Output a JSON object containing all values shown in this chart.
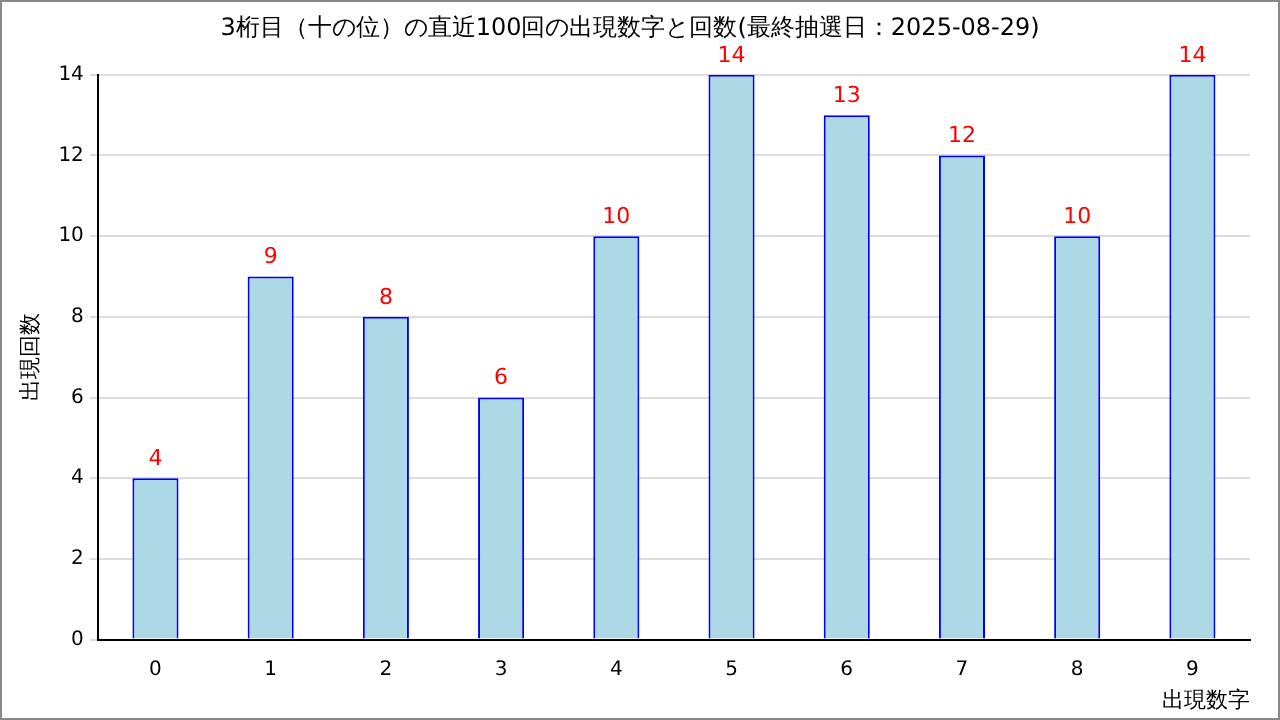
{
  "chart_data": {
    "type": "bar",
    "title": "3桁目（十の位）の直近100回の出現数字と回数(最終抽選日：2025-08-29)",
    "xlabel": "出現数字",
    "ylabel": "出現回数",
    "categories": [
      "0",
      "1",
      "2",
      "3",
      "4",
      "5",
      "6",
      "7",
      "8",
      "9"
    ],
    "values": [
      4,
      9,
      8,
      6,
      10,
      14,
      13,
      12,
      10,
      14
    ],
    "color": "#add8e6",
    "ylim": [
      0,
      14
    ],
    "yticks": [
      0,
      2,
      4,
      6,
      8,
      10,
      12,
      14
    ],
    "grid": "y",
    "data_labels": true,
    "legend": false
  }
}
